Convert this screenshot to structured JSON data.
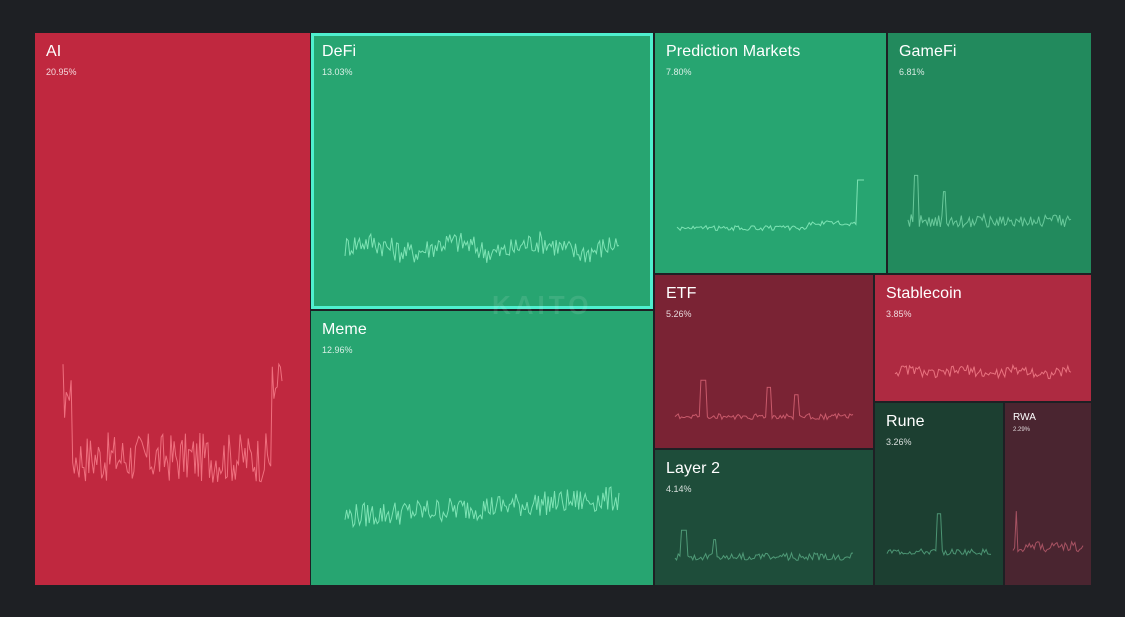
{
  "watermark": "KAITO",
  "chart_data": {
    "type": "treemap",
    "tiles": [
      {
        "name": "AI",
        "share_pct": 20.95,
        "share_label": "20.95%",
        "trend": "down",
        "color": "#c0283f",
        "line_color": "#ef6f7e"
      },
      {
        "name": "DeFi",
        "share_pct": 13.03,
        "share_label": "13.03%",
        "trend": "up",
        "color": "#27a571",
        "line_color": "#7de3b4",
        "selected": true
      },
      {
        "name": "Meme",
        "share_pct": 12.96,
        "share_label": "12.96%",
        "trend": "up",
        "color": "#27a571",
        "line_color": "#7de3b4"
      },
      {
        "name": "Prediction Markets",
        "share_pct": 7.8,
        "share_label": "7.80%",
        "trend": "up",
        "color": "#27a571",
        "line_color": "#7de3b4"
      },
      {
        "name": "GameFi",
        "share_pct": 6.81,
        "share_label": "6.81%",
        "trend": "up",
        "color": "#228a5d",
        "line_color": "#69c99b"
      },
      {
        "name": "ETF",
        "share_pct": 5.26,
        "share_label": "5.26%",
        "trend": "down",
        "color": "#7a2334",
        "line_color": "#c95a6b"
      },
      {
        "name": "Stablecoin",
        "share_pct": 3.85,
        "share_label": "3.85%",
        "trend": "down",
        "color": "#ae2a41",
        "line_color": "#e9727f"
      },
      {
        "name": "Layer 2",
        "share_pct": 4.14,
        "share_label": "4.14%",
        "trend": "up",
        "color": "#1e4d3a",
        "line_color": "#4f9a77"
      },
      {
        "name": "Rune",
        "share_pct": 3.26,
        "share_label": "3.26%",
        "trend": "up",
        "color": "#1c3f31",
        "line_color": "#4c9473"
      },
      {
        "name": "RWA",
        "share_pct": 2.29,
        "share_label": "2.29%",
        "trend": "down",
        "color": "#4a2530",
        "line_color": "#a65262"
      }
    ]
  }
}
